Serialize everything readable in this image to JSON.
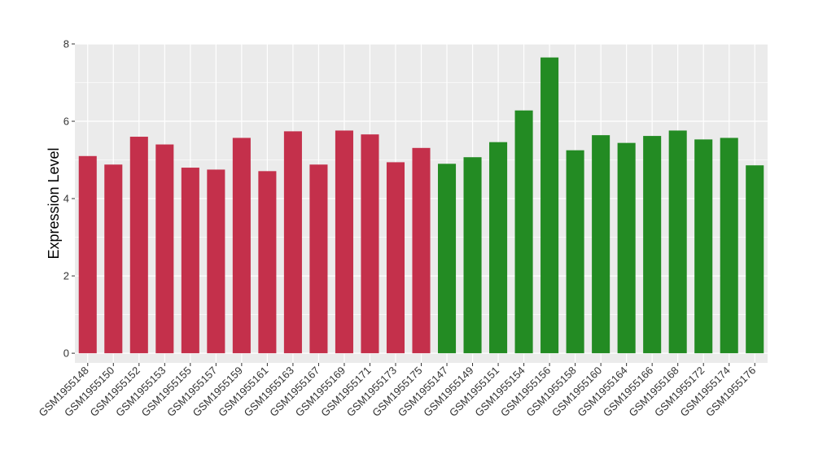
{
  "chart_data": {
    "type": "bar",
    "ylabel": "Expression Level",
    "xlabel": "",
    "ylim": [
      -0.25,
      8
    ],
    "yticks": [
      0,
      2,
      4,
      6,
      8
    ],
    "grid": true,
    "legend": "none",
    "colors": {
      "group_1": "#c4304b",
      "group_2": "#238b23",
      "panel": "#ebebeb",
      "grid": "#ffffff"
    },
    "categories": [
      "GSM1955148",
      "GSM1955150",
      "GSM1955152",
      "GSM1955153",
      "GSM1955155",
      "GSM1955157",
      "GSM1955159",
      "GSM1955161",
      "GSM1955163",
      "GSM1955167",
      "GSM1955169",
      "GSM1955171",
      "GSM1955173",
      "GSM1955175",
      "GSM1955147",
      "GSM1955149",
      "GSM1955151",
      "GSM1955154",
      "GSM1955156",
      "GSM1955158",
      "GSM1955160",
      "GSM1955164",
      "GSM1955166",
      "GSM1955168",
      "GSM1955172",
      "GSM1955174",
      "GSM1955176"
    ],
    "values": [
      5.1,
      4.88,
      5.6,
      5.4,
      4.8,
      4.75,
      5.57,
      4.71,
      5.74,
      4.88,
      5.76,
      5.66,
      4.94,
      5.31,
      4.9,
      5.07,
      5.46,
      6.28,
      7.65,
      5.25,
      5.64,
      5.44,
      5.62,
      5.76,
      5.53,
      5.57,
      4.86
    ],
    "groups": [
      1,
      1,
      1,
      1,
      1,
      1,
      1,
      1,
      1,
      1,
      1,
      1,
      1,
      1,
      2,
      2,
      2,
      2,
      2,
      2,
      2,
      2,
      2,
      2,
      2,
      2,
      2
    ]
  }
}
